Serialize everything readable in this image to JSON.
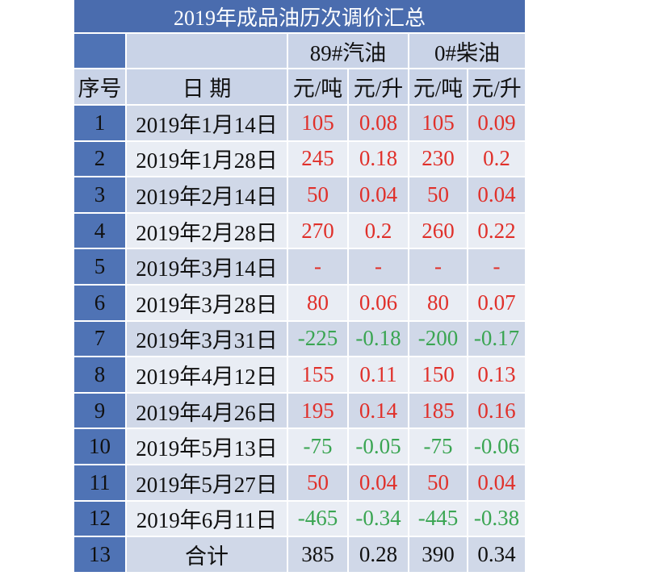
{
  "title": "2019年成品油历次调价汇总",
  "header": {
    "groups": [
      "89#汽油",
      "0#柴油"
    ],
    "columns": [
      "序号",
      "日 期",
      "元/吨",
      "元/升",
      "元/吨",
      "元/升"
    ]
  },
  "table": {
    "rows": [
      [
        "1",
        "2019年1月14日",
        "105",
        "0.08",
        "105",
        "0.09"
      ],
      [
        "2",
        "2019年1月28日",
        "245",
        "0.18",
        "230",
        "0.2"
      ],
      [
        "3",
        "2019年2月14日",
        "50",
        "0.04",
        "50",
        "0.04"
      ],
      [
        "4",
        "2019年2月28日",
        "270",
        "0.2",
        "260",
        "0.22"
      ],
      [
        "5",
        "2019年3月14日",
        "-",
        "-",
        "-",
        "-"
      ],
      [
        "6",
        "2019年3月28日",
        "80",
        "0.06",
        "80",
        "0.07"
      ],
      [
        "7",
        "2019年3月31日",
        "-225",
        "-0.18",
        "-200",
        "-0.17"
      ],
      [
        "8",
        "2019年4月12日",
        "155",
        "0.11",
        "150",
        "0.13"
      ],
      [
        "9",
        "2019年4月26日",
        "195",
        "0.14",
        "185",
        "0.16"
      ],
      [
        "10",
        "2019年5月13日",
        "-75",
        "-0.05",
        "-75",
        "-0.06"
      ],
      [
        "11",
        "2019年5月27日",
        "50",
        "0.04",
        "50",
        "0.04"
      ],
      [
        "12",
        "2019年6月11日",
        "-465",
        "-0.34",
        "-445",
        "-0.38"
      ],
      [
        "13",
        "合计",
        "385",
        "0.28",
        "390",
        "0.34"
      ]
    ]
  }
}
